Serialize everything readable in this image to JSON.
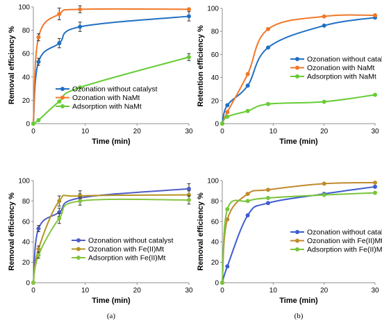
{
  "chart_data": [
    {
      "type": "line",
      "panel": "top-left",
      "xlabel": "Time (min)",
      "ylabel": "Removal efficiency %",
      "xlim": [
        0,
        30
      ],
      "ylim": [
        0,
        100
      ],
      "xticks": [
        0,
        10,
        20,
        30
      ],
      "yticks": [
        0,
        20,
        40,
        60,
        80,
        100
      ],
      "legend": "middle-center",
      "panel_label": "",
      "series": [
        {
          "name": "Ozonation without catalyst",
          "color": "#1f6fc4",
          "x": [
            0,
            1,
            5,
            9,
            30
          ],
          "y": [
            0,
            53,
            69,
            83,
            92
          ],
          "err": [
            0,
            3,
            4,
            4,
            4
          ]
        },
        {
          "name": "Ozonation with NaMt",
          "color": "#f07828",
          "x": [
            0,
            1,
            5,
            9,
            30
          ],
          "y": [
            0,
            74,
            94,
            98,
            98
          ],
          "err": [
            0,
            3,
            5,
            3,
            0
          ]
        },
        {
          "name": "Adsorption with NaMt",
          "color": "#66cc33",
          "x": [
            0,
            1,
            5,
            9,
            30
          ],
          "y": [
            0,
            3,
            19,
            31,
            57
          ],
          "err": [
            0,
            0,
            0,
            0,
            3
          ]
        }
      ]
    },
    {
      "type": "line",
      "panel": "top-right",
      "xlabel": "Time (min)",
      "ylabel": "Retention efficiency %",
      "xlim": [
        0,
        30
      ],
      "ylim": [
        0,
        100
      ],
      "xticks": [
        0,
        10,
        20,
        30
      ],
      "yticks": [
        0,
        20,
        40,
        60,
        80,
        100
      ],
      "legend": "middle-right",
      "panel_label": "",
      "series": [
        {
          "name": "Ozonation without catalyst",
          "color": "#1f6fc4",
          "x": [
            0,
            1,
            5,
            9,
            20,
            30
          ],
          "y": [
            0,
            16,
            33,
            66,
            85,
            92
          ],
          "err": []
        },
        {
          "name": "Ozonation with NaMt",
          "color": "#f07828",
          "x": [
            0,
            1,
            5,
            9,
            20,
            30
          ],
          "y": [
            0,
            10,
            43,
            82,
            93,
            94
          ],
          "err": []
        },
        {
          "name": "Adsorption with NaMt",
          "color": "#66cc33",
          "x": [
            0,
            1,
            5,
            9,
            20,
            30
          ],
          "y": [
            0,
            6,
            11,
            17,
            19,
            25
          ],
          "err": []
        }
      ]
    },
    {
      "type": "line",
      "panel": "bottom-left",
      "xlabel": "Time (min)",
      "ylabel": "Removal efficiency %",
      "xlim": [
        0,
        30
      ],
      "ylim": [
        0,
        100
      ],
      "xticks": [
        0,
        10,
        20,
        30
      ],
      "yticks": [
        0,
        20,
        40,
        60,
        80,
        100
      ],
      "legend": "bottom-right",
      "panel_label": "(a)",
      "series": [
        {
          "name": "Ozonation without catalyst",
          "color": "#4f5cc8",
          "x": [
            0,
            1,
            5,
            9,
            30
          ],
          "y": [
            0,
            53,
            69,
            83,
            92
          ],
          "err": [
            0,
            3,
            4,
            4,
            5
          ]
        },
        {
          "name": "Ozonation with Fe(II)Mt",
          "color": "#b39423",
          "x": [
            0,
            1,
            5,
            9,
            30
          ],
          "y": [
            0,
            33,
            80,
            85,
            86
          ],
          "err": [
            0,
            3,
            5,
            5,
            4
          ]
        },
        {
          "name": "Adsorption with Fe(II)Mt",
          "color": "#86c440",
          "x": [
            0,
            1,
            5,
            9,
            30
          ],
          "y": [
            0,
            27,
            63,
            80,
            81
          ],
          "err": [
            0,
            3,
            5,
            4,
            4
          ]
        }
      ]
    },
    {
      "type": "line",
      "panel": "bottom-right",
      "xlabel": "Time (min)",
      "ylabel": "Removal efficiency %",
      "xlim": [
        0,
        30
      ],
      "ylim": [
        0,
        100
      ],
      "xticks": [
        0,
        10,
        20,
        30
      ],
      "yticks": [
        0,
        20,
        40,
        60,
        80,
        100
      ],
      "legend": "bottom-right",
      "panel_label": "(b)",
      "series": [
        {
          "name": "Ozonation without catalyst",
          "color": "#3c5ccf",
          "x": [
            0,
            1,
            5,
            9,
            20,
            30
          ],
          "y": [
            0,
            16,
            66,
            78,
            87,
            94
          ],
          "err": []
        },
        {
          "name": "Ozonation with Fe(II)Mt",
          "color": "#c08a2c",
          "x": [
            0,
            1,
            5,
            9,
            20,
            30
          ],
          "y": [
            0,
            62,
            87,
            91,
            97,
            98
          ],
          "err": []
        },
        {
          "name": "Adsorption with Fe(II)Mt",
          "color": "#78c43a",
          "x": [
            0,
            1,
            5,
            9,
            20,
            30
          ],
          "y": [
            0,
            72,
            80,
            83,
            86,
            88
          ],
          "err": []
        }
      ]
    }
  ]
}
